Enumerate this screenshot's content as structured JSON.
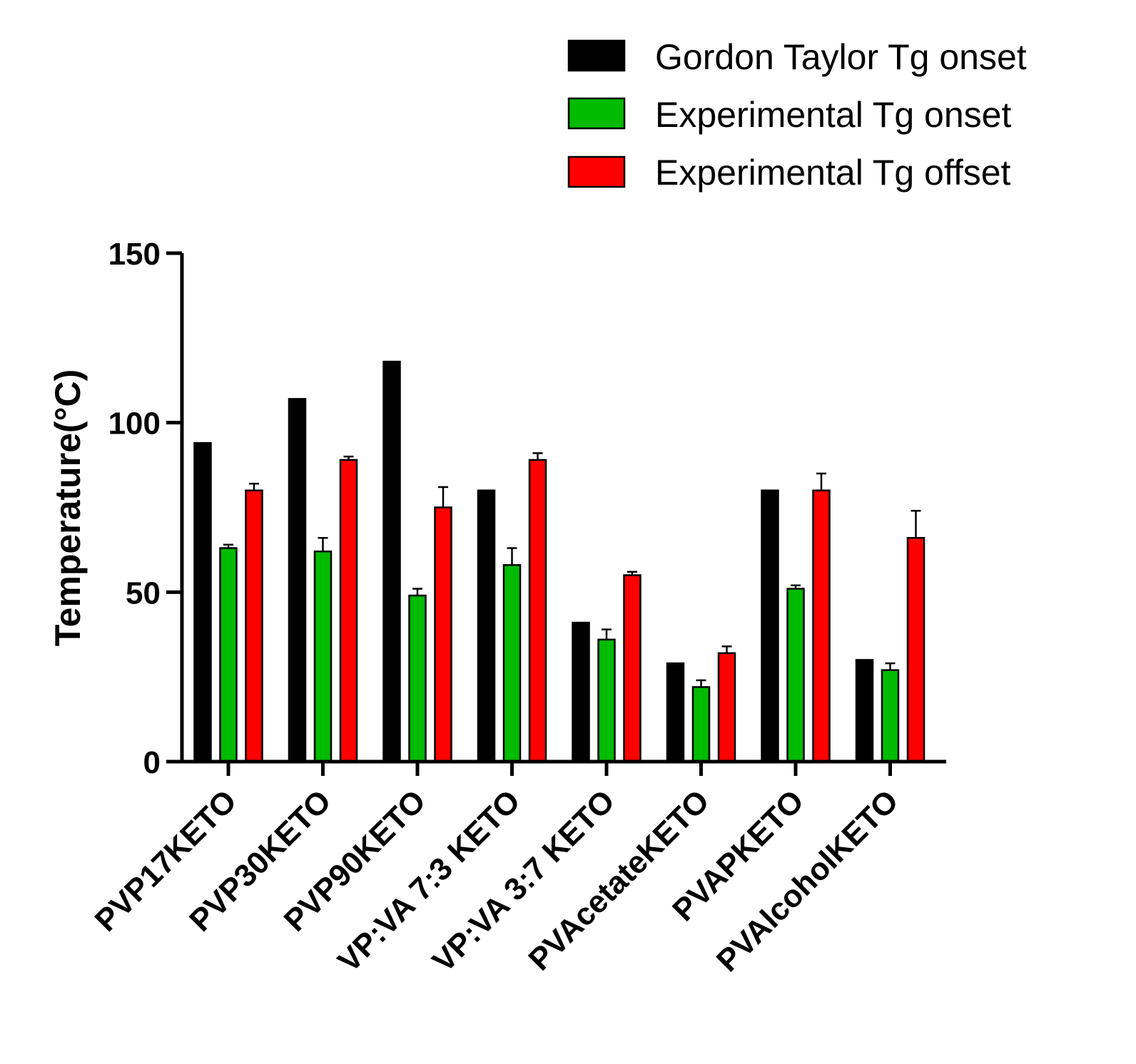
{
  "chart_data": {
    "type": "bar",
    "title": "",
    "xlabel": "",
    "ylabel": "Temperature(°C)",
    "ylim": [
      0,
      150
    ],
    "yticks": [
      0,
      50,
      100,
      150
    ],
    "grid": false,
    "legend_position": "top-right",
    "categories": [
      "PVP17KETO",
      "PVP30KETO",
      "PVP90KETO",
      "VP:VA 7:3 KETO",
      "VP:VA 3:7 KETO",
      "PVAcetateKETO",
      "PVAPKETO",
      "PVAlcoholKETO"
    ],
    "series": [
      {
        "name": "Gordon Taylor Tg onset",
        "color": "#000000",
        "values": [
          94,
          107,
          118,
          80,
          41,
          29,
          80,
          30
        ],
        "errors": [
          0,
          0,
          0,
          0,
          0,
          0,
          0,
          0
        ]
      },
      {
        "name": "Experimental Tg onset",
        "color": "#00bb00",
        "values": [
          63,
          62,
          49,
          58,
          36,
          22,
          51,
          27
        ],
        "errors": [
          1,
          4,
          2,
          5,
          3,
          2,
          1,
          2
        ]
      },
      {
        "name": "Experimental Tg offset",
        "color": "#ff0000",
        "values": [
          80,
          89,
          75,
          89,
          55,
          32,
          80,
          66
        ],
        "errors": [
          2,
          1,
          6,
          2,
          1,
          2,
          5,
          8
        ]
      }
    ]
  }
}
